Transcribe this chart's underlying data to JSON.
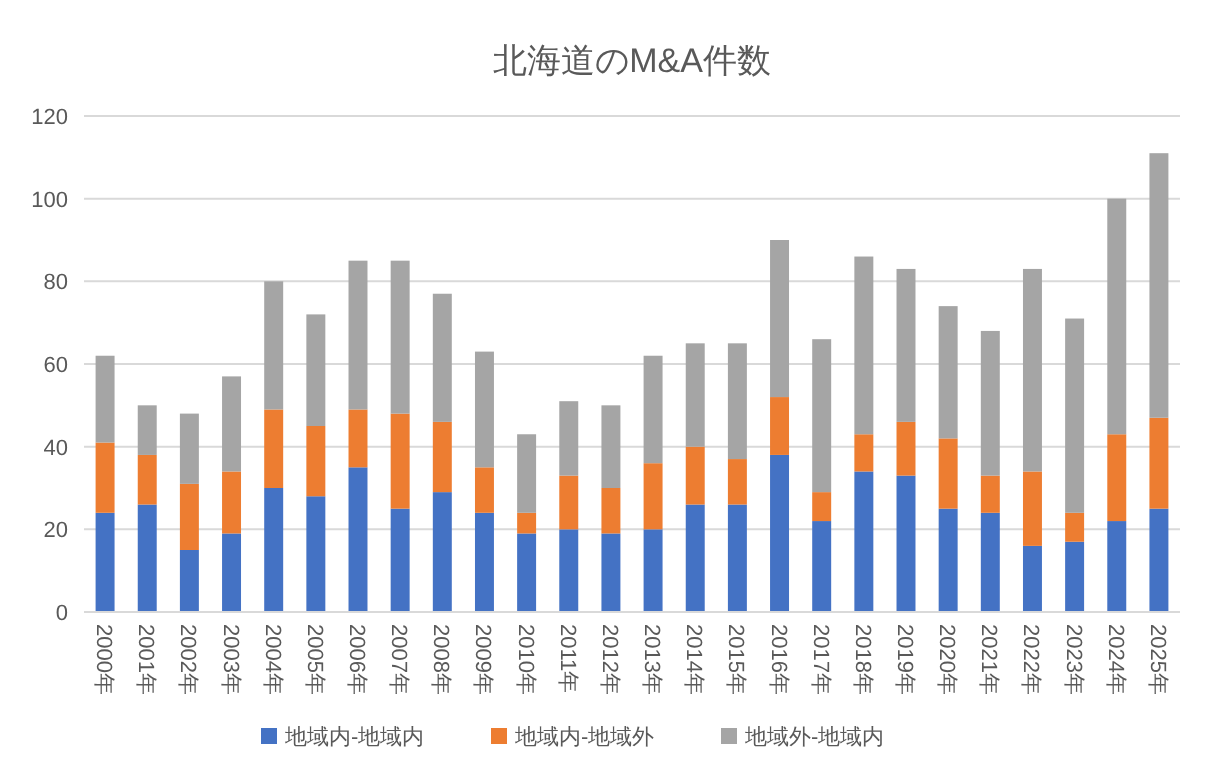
{
  "chart_data": {
    "type": "bar",
    "title": "北海道のM&A件数",
    "stacked": true,
    "categories": [
      "2000年",
      "2001年",
      "2002年",
      "2003年",
      "2004年",
      "2005年",
      "2006年",
      "2007年",
      "2008年",
      "2009年",
      "2010年",
      "2011年",
      "2012年",
      "2013年",
      "2014年",
      "2015年",
      "2016年",
      "2017年",
      "2018年",
      "2019年",
      "2020年",
      "2021年",
      "2022年",
      "2023年",
      "2024年",
      "2025年"
    ],
    "series": [
      {
        "name": "地域内-地域内",
        "color": "#4472c4",
        "values": [
          24,
          26,
          15,
          19,
          30,
          28,
          35,
          25,
          29,
          24,
          19,
          20,
          19,
          20,
          26,
          26,
          38,
          22,
          34,
          33,
          25,
          24,
          16,
          17,
          22,
          25
        ]
      },
      {
        "name": "地域内-地域外",
        "color": "#ed7d31",
        "values": [
          17,
          12,
          16,
          15,
          19,
          17,
          14,
          23,
          17,
          11,
          5,
          13,
          11,
          16,
          14,
          11,
          14,
          7,
          9,
          13,
          17,
          9,
          18,
          7,
          21,
          22
        ]
      },
      {
        "name": "地域外-地域内",
        "color": "#a5a5a5",
        "values": [
          21,
          12,
          17,
          23,
          31,
          27,
          36,
          37,
          31,
          28,
          19,
          18,
          20,
          26,
          25,
          28,
          38,
          37,
          43,
          37,
          32,
          35,
          49,
          47,
          57,
          64
        ]
      }
    ],
    "ylim": [
      0,
      120
    ],
    "yticks": [
      0,
      20,
      40,
      60,
      80,
      100,
      120
    ],
    "grid": "y",
    "legend": "bottom"
  }
}
